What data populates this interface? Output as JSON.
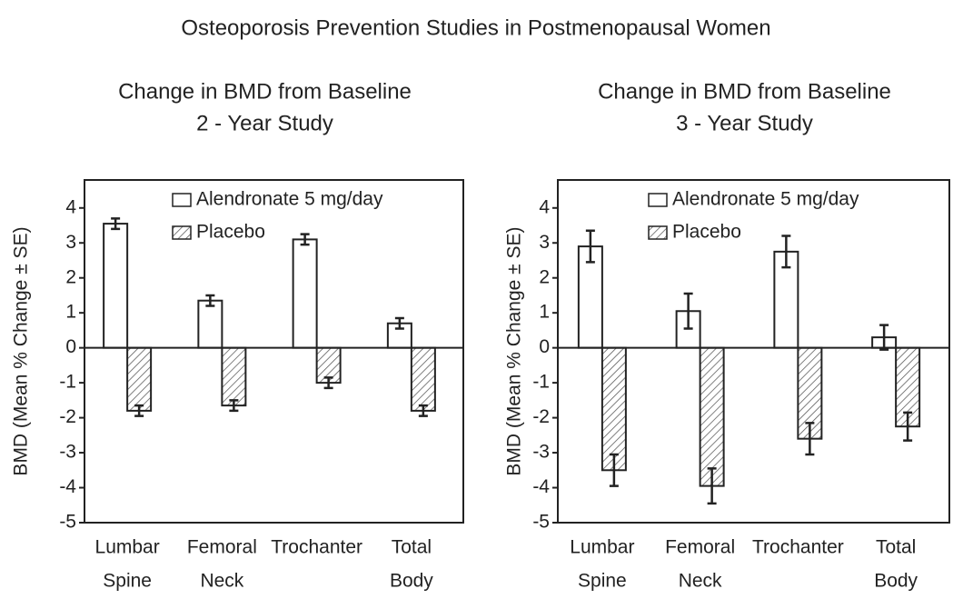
{
  "title": "Osteoporosis Prevention Studies in Postmenopausal Women",
  "chart_data": [
    {
      "type": "bar",
      "title": [
        "Change in BMD from Baseline",
        "2 - Year Study"
      ],
      "ylabel": "BMD (Mean % Change ± SE)",
      "categories": [
        [
          "Lumbar",
          "Spine"
        ],
        [
          "Femoral",
          "Neck"
        ],
        [
          "Trochanter"
        ],
        [
          "Total",
          "Body"
        ]
      ],
      "series": [
        {
          "name": "Alendronate 5 mg/day",
          "color": "#ffffff",
          "values": [
            3.55,
            1.35,
            3.1,
            0.7
          ],
          "errors": [
            0.15,
            0.15,
            0.15,
            0.15
          ]
        },
        {
          "name": "Placebo",
          "color": "#ffffff",
          "hatch": true,
          "values": [
            -1.8,
            -1.65,
            -1.0,
            -1.8
          ],
          "errors": [
            0.15,
            0.15,
            0.15,
            0.15
          ]
        }
      ],
      "ylim": [
        -5,
        4.8
      ],
      "yticks": [
        -5,
        -4,
        -3,
        -2,
        -1,
        0,
        1,
        2,
        3,
        4
      ],
      "legend": "upper center"
    },
    {
      "type": "bar",
      "title": [
        "Change in BMD from Baseline",
        "3 - Year Study"
      ],
      "ylabel": "BMD (Mean % Change ± SE)",
      "categories": [
        [
          "Lumbar",
          "Spine"
        ],
        [
          "Femoral",
          "Neck"
        ],
        [
          "Trochanter"
        ],
        [
          "Total",
          "Body"
        ]
      ],
      "series": [
        {
          "name": "Alendronate 5 mg/day",
          "color": "#ffffff",
          "values": [
            2.9,
            1.05,
            2.75,
            0.3
          ],
          "errors": [
            0.45,
            0.5,
            0.45,
            0.35
          ]
        },
        {
          "name": "Placebo",
          "color": "#ffffff",
          "hatch": true,
          "values": [
            -3.5,
            -3.95,
            -2.6,
            -2.25
          ],
          "errors": [
            0.45,
            0.5,
            0.45,
            0.4
          ]
        }
      ],
      "ylim": [
        -5,
        4.8
      ],
      "yticks": [
        -5,
        -4,
        -3,
        -2,
        -1,
        0,
        1,
        2,
        3,
        4
      ],
      "legend": "upper center"
    }
  ]
}
